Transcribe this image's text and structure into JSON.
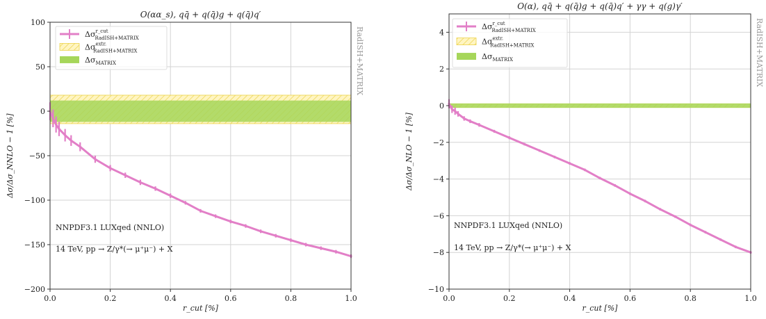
{
  "colors": {
    "radish": "#e27fc7",
    "extr_fill": "#fff5c2",
    "extr_hatch": "#ecd34a",
    "matrix": "#a6d65a",
    "grid": "#d3d3d3",
    "axis": "#333333",
    "side_label": "#999999"
  },
  "side_label": "RadISH+MATRIX",
  "chart_data": [
    {
      "type": "line",
      "title": "O(αα_s), qq̄ + q(q̄)g + q(q̄)q′",
      "xlabel": "r_cut [%]",
      "ylabel": "Δσ/Δσ_NNLO − 1 [%]",
      "xlim": [
        0,
        1
      ],
      "ylim": [
        -200,
        100
      ],
      "xticks": [
        "0.0",
        "0.2",
        "0.4",
        "0.6",
        "0.8",
        "1.0"
      ],
      "yticks": [
        "100",
        "50",
        "0",
        "−50",
        "−100",
        "−150",
        "−200"
      ],
      "xtick_values": [
        0,
        0.2,
        0.4,
        0.6,
        0.8,
        1.0
      ],
      "ytick_values": [
        100,
        50,
        0,
        -50,
        -100,
        -150,
        -200
      ],
      "grid": true,
      "legend_position": "top-left",
      "legend": [
        {
          "label": "Δσ^{r_cut}_{RadISH+MATRIX}",
          "sub": "RadISH+MATRIX",
          "sup": "r_cut",
          "kind": "errorbar"
        },
        {
          "label": "Δσ^{extr.}_{RadISH+MATRIX}",
          "sub": "RadISH+MATRIX",
          "sup": "extr.",
          "kind": "hatched"
        },
        {
          "label": "Δσ_MATRIX",
          "sub": "MATRIX",
          "sup": "",
          "kind": "band"
        }
      ],
      "annotations": [
        "NNPDF3.1 LUXqed (NNLO)",
        "14 TeV, pp → Z/γ*(→ μ⁺μ⁻) + X"
      ],
      "series": [
        {
          "name": "Δσ^{r_cut}_{RadISH+MATRIX}",
          "x": [
            0.0,
            0.01,
            0.02,
            0.03,
            0.05,
            0.07,
            0.1,
            0.15,
            0.2,
            0.25,
            0.3,
            0.35,
            0.4,
            0.45,
            0.5,
            0.55,
            0.6,
            0.65,
            0.7,
            0.75,
            0.8,
            0.85,
            0.9,
            0.95,
            1.0
          ],
          "y": [
            0,
            -8,
            -15,
            -20,
            -27,
            -33,
            -40,
            -54,
            -64,
            -72,
            -80,
            -87,
            -95,
            -103,
            -112,
            -118,
            -124,
            -129,
            -135,
            -140,
            -145,
            -150,
            -154,
            -158,
            -163
          ],
          "err": [
            10,
            10,
            9,
            8,
            7,
            6,
            5,
            4,
            3.5,
            3,
            3,
            2.5,
            2.5,
            2,
            2,
            2,
            2,
            2,
            2,
            2,
            2,
            2,
            2,
            2,
            2
          ]
        }
      ],
      "band_extr": [
        -14,
        18
      ],
      "band_matrix": [
        -12,
        12
      ]
    },
    {
      "type": "line",
      "title": "O(α), qq̄ + q(q̄)g + q(q̄)q′ + γγ + q(g)γ′",
      "xlabel": "r_cut [%]",
      "ylabel": "Δσ/Δσ_NLO − 1 [%]",
      "xlim": [
        0,
        1
      ],
      "ylim": [
        -10,
        5
      ],
      "xticks": [
        "0.0",
        "0.2",
        "0.4",
        "0.6",
        "0.8",
        "1.0"
      ],
      "yticks": [
        "4",
        "2",
        "0",
        "−2",
        "−4",
        "−6",
        "−8",
        "−10"
      ],
      "xtick_values": [
        0,
        0.2,
        0.4,
        0.6,
        0.8,
        1.0
      ],
      "ytick_values": [
        4,
        2,
        0,
        -2,
        -4,
        -6,
        -8,
        -10
      ],
      "grid": true,
      "legend_position": "top-left",
      "legend": [
        {
          "label": "Δσ^{r_cut}_{RadISH+MATRIX}",
          "sub": "RadISH+MATRIX",
          "sup": "r_cut",
          "kind": "errorbar"
        },
        {
          "label": "Δσ^{extr.}_{RadISH+MATRIX}",
          "sub": "RadISH+MATRIX",
          "sup": "extr.",
          "kind": "hatched"
        },
        {
          "label": "Δσ_MATRIX",
          "sub": "MATRIX",
          "sup": "",
          "kind": "band"
        }
      ],
      "annotations": [
        "NNPDF3.1 LUXqed (NNLO)",
        "14 TeV, pp → Z/γ*(→ μ⁺μ⁻) + X"
      ],
      "series": [
        {
          "name": "Δσ^{r_cut}_{RadISH+MATRIX}",
          "x": [
            0.0,
            0.01,
            0.02,
            0.03,
            0.05,
            0.07,
            0.1,
            0.15,
            0.2,
            0.25,
            0.3,
            0.35,
            0.4,
            0.45,
            0.5,
            0.55,
            0.6,
            0.65,
            0.7,
            0.75,
            0.8,
            0.85,
            0.9,
            0.95,
            1.0
          ],
          "y": [
            0.1,
            -0.2,
            -0.3,
            -0.45,
            -0.7,
            -0.85,
            -1.05,
            -1.4,
            -1.75,
            -2.1,
            -2.45,
            -2.8,
            -3.15,
            -3.5,
            -3.95,
            -4.35,
            -4.8,
            -5.2,
            -5.65,
            -6.05,
            -6.5,
            -6.9,
            -7.3,
            -7.7,
            -8.0
          ],
          "err": [
            0.25,
            0.2,
            0.2,
            0.15,
            0.12,
            0.1,
            0.1,
            0.08,
            0.08,
            0.07,
            0.07,
            0.07,
            0.07,
            0.07,
            0.07,
            0.07,
            0.07,
            0.07,
            0.07,
            0.07,
            0.07,
            0.07,
            0.07,
            0.07,
            0.07
          ]
        }
      ],
      "band_extr": [
        -0.1,
        0.1
      ],
      "band_matrix": [
        -0.12,
        0.12
      ]
    }
  ]
}
